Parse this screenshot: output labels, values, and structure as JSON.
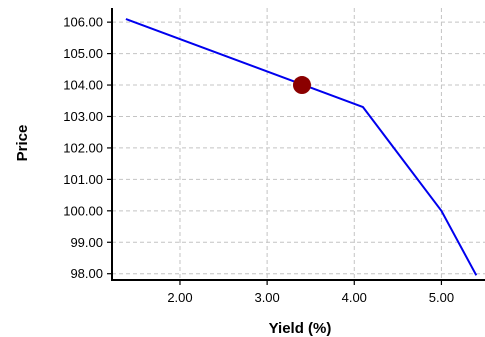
{
  "chart_data": {
    "type": "line",
    "xlabel": "Yield (%)",
    "ylabel": "Price",
    "xlim": [
      1.22,
      5.5
    ],
    "ylim": [
      97.8,
      106.45
    ],
    "xticks": [
      2.0,
      3.0,
      4.0,
      5.0
    ],
    "xtick_labels": [
      "2.00",
      "3.00",
      "4.00",
      "5.00"
    ],
    "yticks": [
      98,
      99,
      100,
      101,
      102,
      103,
      104,
      105,
      106
    ],
    "ytick_labels": [
      "98.00",
      "99.00",
      "100.00",
      "101.00",
      "102.00",
      "103.00",
      "104.00",
      "105.00",
      "106.00"
    ],
    "grid": true,
    "series": [
      {
        "color": "#0000ee",
        "x": [
          1.38,
          4.1,
          5.0,
          5.4
        ],
        "y": [
          106.1,
          103.3,
          100.0,
          97.95
        ]
      }
    ],
    "highlight_point": {
      "x": 3.4,
      "y": 104.0,
      "color": "#8b0000"
    }
  }
}
